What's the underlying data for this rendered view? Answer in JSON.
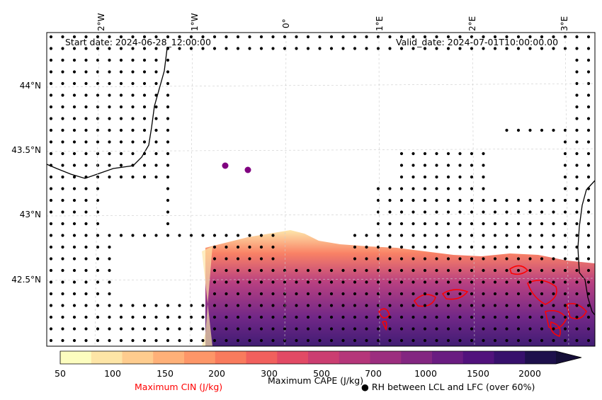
{
  "header": {
    "start_date": "Start date: 2024-06-28_12:00:00",
    "valid_date": "Valid_date: 2024-07-01T10:00:00.00"
  },
  "map": {
    "longitude_labels": [
      "2°W",
      "1°W",
      "0°",
      "1°E",
      "2°E",
      "3°E"
    ],
    "latitude_labels": [
      "44°N",
      "43.5°N",
      "43°N",
      "42.5°N"
    ]
  },
  "colorbar": {
    "ticks": [
      "50",
      "100",
      "150",
      "200",
      "300",
      "500",
      "700",
      "1000",
      "1500",
      "2000"
    ],
    "colors": [
      "#fcfdbf",
      "#fde5a6",
      "#fecc8e",
      "#feb078",
      "#fd9668",
      "#f97b5d",
      "#f1605d",
      "#e24a65",
      "#cb3e71",
      "#b5367a",
      "#9c2e7f",
      "#832681",
      "#6a1c81",
      "#51127c",
      "#37106c",
      "#1e104c"
    ]
  },
  "legend": {
    "cin_label": "Maximum CIN (J/kg)",
    "cape_label": "Maximum CAPE (J/kg)",
    "rh_label": "● RH between LCL and LFC (over 60%)",
    "cin_color": "#ff0000",
    "station_color": "#800080"
  }
}
